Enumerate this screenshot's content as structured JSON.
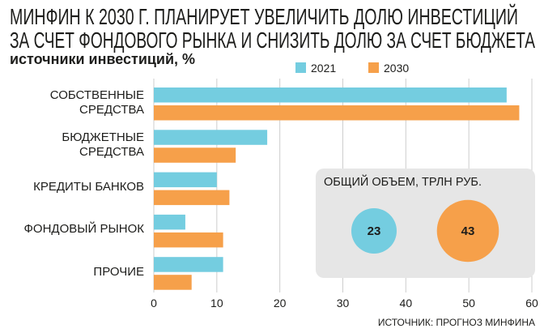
{
  "colors": {
    "grid": "#cdcdcd",
    "inset_bg": "#e6e6e6"
  },
  "chart_data": {
    "type": "bar",
    "orientation": "horizontal",
    "title": [
      "МИНФИН К 2030 Г. ПЛАНИРУЕТ УВЕЛИЧИТЬ ДОЛЮ ИНВЕСТИЦИЙ",
      "ЗА СЧЕТ ФОНДОВОГО РЫНКА И СНИЗИТЬ ДОЛЮ ЗА СЧЕТ БЮДЖЕТА"
    ],
    "subtitle": "источники инвестиций, %",
    "categories": [
      "СОБСТВЕННЫЕ СРЕДСТВА",
      "БЮДЖЕТНЫЕ СРЕДСТВА",
      "КРЕДИТЫ БАНКОВ",
      "ФОНДОВЫЙ РЫНОК",
      "ПРОЧИЕ"
    ],
    "series": [
      {
        "name": "2021",
        "color": "#74cde0",
        "values": [
          56,
          18,
          10,
          5,
          11
        ]
      },
      {
        "name": "2030",
        "color": "#f6a04a",
        "values": [
          58,
          13,
          12,
          11,
          6
        ]
      }
    ],
    "xlim": [
      0,
      60
    ],
    "xticks": [
      0,
      10,
      20,
      30,
      40,
      50,
      60
    ],
    "grid": true,
    "legend": "top",
    "source": "ИСТОЧНИК: ПРОГНОЗ МИНФИНА"
  },
  "inset": {
    "title": "ОБЩИЙ ОБЪЕМ, ТРЛН РУБ.",
    "bubbles": [
      {
        "value": 23,
        "color": "#74cde0"
      },
      {
        "value": 43,
        "color": "#f6a04a"
      }
    ]
  }
}
